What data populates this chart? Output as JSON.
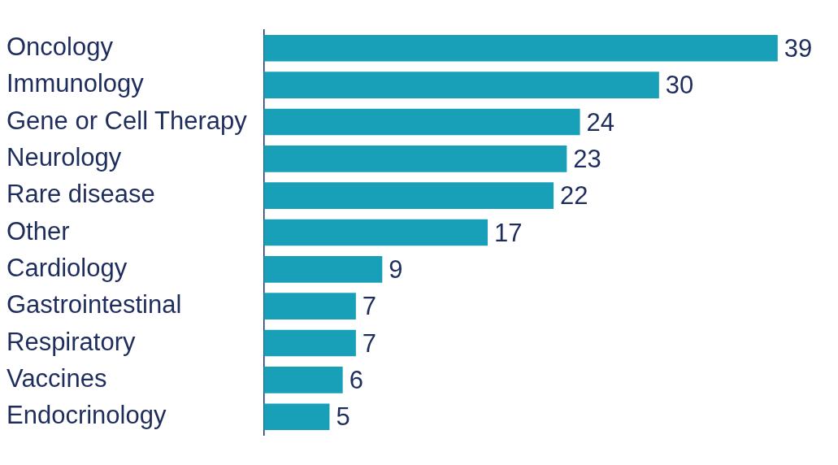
{
  "chart_data": {
    "type": "bar",
    "orientation": "horizontal",
    "categories": [
      "Oncology",
      "Immunology",
      "Gene or Cell Therapy",
      "Neurology",
      "Rare disease",
      "Other",
      "Cardiology",
      "Gastrointestinal",
      "Respiratory",
      "Vaccines",
      "Endocrinology"
    ],
    "values": [
      39,
      30,
      24,
      23,
      22,
      17,
      9,
      7,
      7,
      6,
      5
    ],
    "color": "#18a0b9",
    "data_labels": true
  }
}
